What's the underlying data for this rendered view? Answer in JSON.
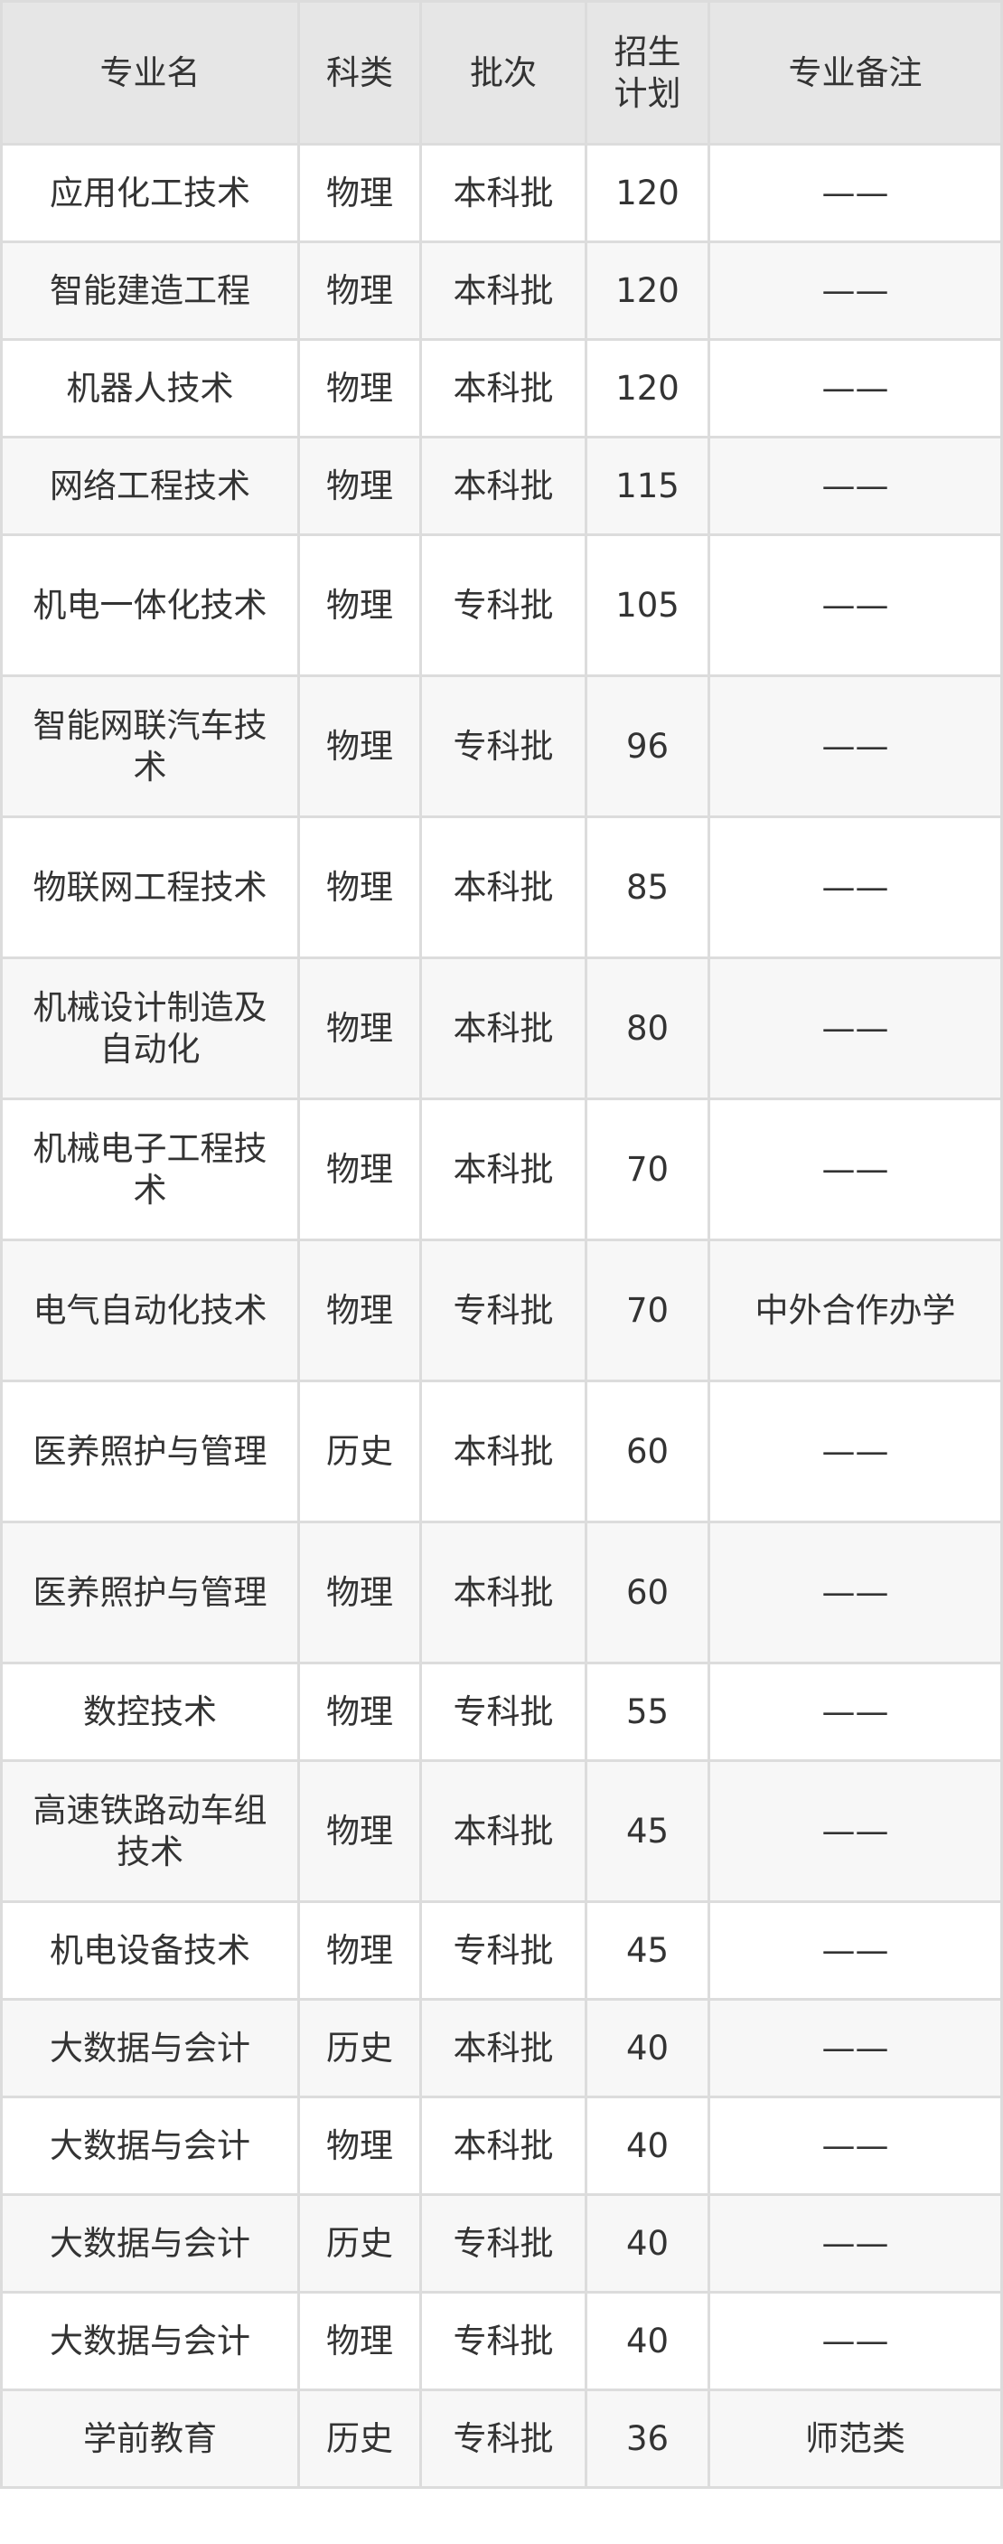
{
  "table": {
    "headers": [
      "专业名",
      "科类",
      "批次",
      "招生计划",
      "专业备注"
    ],
    "rows": [
      {
        "name": "应用化工技术",
        "subject": "物理",
        "batch": "本科批",
        "plan": "120",
        "note": "——"
      },
      {
        "name": "智能建造工程",
        "subject": "物理",
        "batch": "本科批",
        "plan": "120",
        "note": "——"
      },
      {
        "name": "机器人技术",
        "subject": "物理",
        "batch": "本科批",
        "plan": "120",
        "note": "——"
      },
      {
        "name": "网络工程技术",
        "subject": "物理",
        "batch": "本科批",
        "plan": "115",
        "note": "——"
      },
      {
        "name": "机电一体化技术",
        "subject": "物理",
        "batch": "专科批",
        "plan": "105",
        "note": "——"
      },
      {
        "name": "智能网联汽车技术",
        "subject": "物理",
        "batch": "专科批",
        "plan": "96",
        "note": "——"
      },
      {
        "name": "物联网工程技术",
        "subject": "物理",
        "batch": "本科批",
        "plan": "85",
        "note": "——"
      },
      {
        "name": "机械设计制造及自动化",
        "subject": "物理",
        "batch": "本科批",
        "plan": "80",
        "note": "——"
      },
      {
        "name": "机械电子工程技术",
        "subject": "物理",
        "batch": "本科批",
        "plan": "70",
        "note": "——"
      },
      {
        "name": "电气自动化技术",
        "subject": "物理",
        "batch": "专科批",
        "plan": "70",
        "note": "中外合作办学"
      },
      {
        "name": "医养照护与管理",
        "subject": "历史",
        "batch": "本科批",
        "plan": "60",
        "note": "——"
      },
      {
        "name": "医养照护与管理",
        "subject": "物理",
        "batch": "本科批",
        "plan": "60",
        "note": "——"
      },
      {
        "name": "数控技术",
        "subject": "物理",
        "batch": "专科批",
        "plan": "55",
        "note": "——"
      },
      {
        "name": "高速铁路动车组技术",
        "subject": "物理",
        "batch": "本科批",
        "plan": "45",
        "note": "——"
      },
      {
        "name": "机电设备技术",
        "subject": "物理",
        "batch": "专科批",
        "plan": "45",
        "note": "——"
      },
      {
        "name": "大数据与会计",
        "subject": "历史",
        "batch": "本科批",
        "plan": "40",
        "note": "——"
      },
      {
        "name": "大数据与会计",
        "subject": "物理",
        "batch": "本科批",
        "plan": "40",
        "note": "——"
      },
      {
        "name": "大数据与会计",
        "subject": "历史",
        "batch": "专科批",
        "plan": "40",
        "note": "——"
      },
      {
        "name": "大数据与会计",
        "subject": "物理",
        "batch": "专科批",
        "plan": "40",
        "note": "——"
      },
      {
        "name": "学前教育",
        "subject": "历史",
        "batch": "专科批",
        "plan": "36",
        "note": "师范类"
      }
    ]
  }
}
